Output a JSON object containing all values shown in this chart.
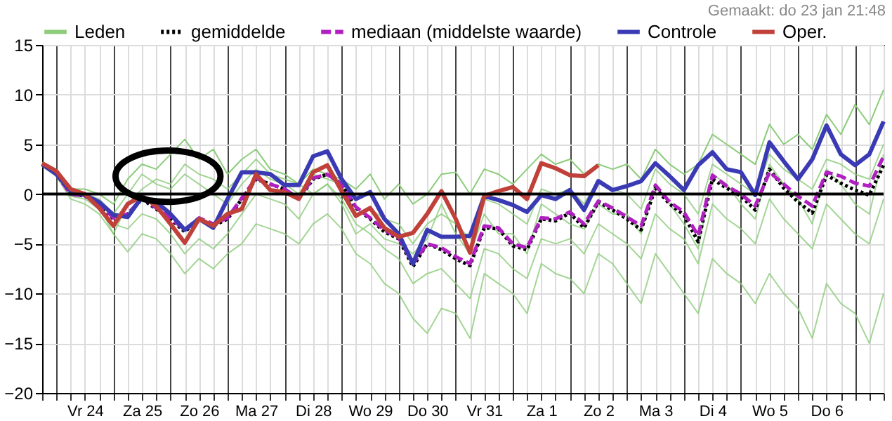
{
  "chart_data": {
    "type": "line",
    "annotations": [
      "Gemaakt: do 23 jan 21:48"
    ],
    "categories": [
      null,
      null,
      null,
      "Vr 24",
      null,
      null,
      null,
      "Za 25",
      null,
      null,
      null,
      "Zo 26",
      null,
      null,
      null,
      "Ma 27",
      null,
      null,
      null,
      "Di 28",
      null,
      null,
      null,
      "Wo 29",
      null,
      null,
      null,
      "Do 30",
      null,
      null,
      null,
      "Vr 31",
      null,
      null,
      null,
      "Za 1",
      null,
      null,
      null,
      "Zo 2",
      null,
      null,
      null,
      "Ma 3",
      null,
      null,
      null,
      "Di 4",
      null,
      null,
      null,
      "Wo 5",
      null,
      null,
      null,
      "Do 6",
      null,
      null,
      null,
      null
    ],
    "ylim": [
      -20,
      15
    ],
    "yticks": [
      -20,
      -15,
      -10,
      -5,
      0,
      5,
      10,
      15
    ],
    "grid": true,
    "legend": "top",
    "ref_lines": [
      {
        "axis": "y",
        "value": 0,
        "color": "#000000"
      }
    ],
    "series": [
      {
        "name": "Leden",
        "color": "#8ccc7a",
        "values": [
          3.0,
          2.2,
          0.5,
          0.5,
          0.0,
          -1.0,
          1.5,
          3.0,
          2.5,
          4.0,
          5.5,
          3.5,
          4.5,
          2.0,
          3.5,
          4.5,
          2.5,
          2.0,
          1.0,
          2.5,
          2.0,
          1.5,
          0.5,
          2.0,
          -0.5,
          1.0,
          -1.0,
          0.0,
          2.0,
          2.2,
          0.0,
          2.5,
          2.0,
          1.0,
          2.5,
          4.0,
          3.0,
          3.5,
          2.0,
          3.0,
          2.5,
          3.0,
          1.5,
          4.5,
          3.0,
          2.0,
          3.0,
          6.0,
          5.0,
          4.0,
          3.0,
          7.0,
          5.0,
          6.0,
          4.5,
          8.0,
          6.0,
          9.0,
          7.0,
          10.5
        ]
      },
      {
        "color": "#8ccc7a",
        "values": [
          2.8,
          1.8,
          -0.5,
          -1.0,
          -2.0,
          -4.0,
          -5.8,
          -4.0,
          -4.5,
          -6.0,
          -8.0,
          -6.5,
          -7.5,
          -6.0,
          -5.0,
          -3.0,
          -3.5,
          -4.0,
          -5.0,
          -3.0,
          -2.0,
          -3.5,
          -6.0,
          -7.0,
          -9.0,
          -10.0,
          -12.5,
          -14.0,
          -11.5,
          -12.0,
          -14.5,
          -8.0,
          -9.0,
          -10.0,
          -12.0,
          -7.0,
          -8.0,
          -8.5,
          -10.0,
          -6.0,
          -7.0,
          -9.0,
          -11.0,
          -6.0,
          -8.0,
          -10.0,
          -12.0,
          -6.5,
          -8.0,
          -9.0,
          -11.0,
          -8.0,
          -10.0,
          -11.5,
          -14.5,
          -9.0,
          -11.0,
          -12.0,
          -15.0,
          -10.0
        ]
      },
      {
        "color": "#8ccc7a",
        "values": [
          3.0,
          2.0,
          0.3,
          0.0,
          -0.5,
          -2.0,
          0.0,
          2.0,
          1.0,
          0.5,
          2.0,
          1.0,
          0.0,
          -1.0,
          1.0,
          2.5,
          1.5,
          1.0,
          0.0,
          2.0,
          1.5,
          1.0,
          -2.0,
          -1.5,
          -2.5,
          -3.0,
          -5.0,
          -3.0,
          -2.0,
          -3.0,
          -4.5,
          -0.5,
          -1.0,
          -2.0,
          -3.0,
          0.5,
          0.0,
          0.5,
          -1.0,
          1.5,
          0.5,
          0.0,
          -1.5,
          2.5,
          1.0,
          0.0,
          -2.0,
          3.0,
          2.0,
          1.0,
          0.0,
          4.0,
          2.5,
          1.5,
          0.5,
          3.5,
          3.0,
          2.0,
          1.5,
          5.0
        ]
      },
      {
        "color": "#8ccc7a",
        "values": [
          3.0,
          1.9,
          -0.2,
          -0.5,
          -1.5,
          -3.0,
          -3.5,
          -2.0,
          -2.5,
          -4.0,
          -6.0,
          -4.5,
          -5.5,
          -4.0,
          -2.0,
          0.0,
          -0.5,
          -1.0,
          -2.5,
          0.0,
          1.0,
          -0.5,
          -3.0,
          -4.0,
          -5.5,
          -6.5,
          -9.0,
          -8.0,
          -7.5,
          -9.0,
          -10.5,
          -5.5,
          -6.0,
          -7.5,
          -8.5,
          -4.5,
          -5.0,
          -4.5,
          -6.0,
          -3.0,
          -4.0,
          -5.0,
          -6.5,
          -2.0,
          -3.5,
          -4.5,
          -7.0,
          -1.0,
          -2.5,
          -3.5,
          -5.0,
          -0.5,
          -2.5,
          -4.0,
          -5.5,
          -1.0,
          -2.5,
          -4.0,
          -5.0,
          -0.5
        ]
      },
      {
        "color": "#8ccc7a",
        "values": [
          3.2,
          2.1,
          0.2,
          -0.3,
          -1.2,
          -4.0,
          -1.0,
          0.5,
          1.5,
          1.0,
          3.0,
          2.0,
          1.5,
          0.5,
          2.0,
          3.5,
          2.0,
          1.5,
          1.0,
          0.0,
          1.0,
          -1.0,
          -4.0,
          -3.0,
          -4.5,
          -5.0,
          -6.0,
          -4.5,
          -1.0,
          -4.0,
          -6.0,
          -2.0,
          -4.0,
          -4.0,
          -6.0,
          -1.0,
          -2.0,
          -3.0,
          -3.5,
          -1.0,
          -2.0,
          -2.0,
          -4.0,
          1.0,
          -1.0,
          -3.0,
          -5.5,
          2.0,
          1.0,
          -1.0,
          -2.5,
          3.0,
          1.0,
          -0.5,
          -3.0,
          2.5,
          1.0,
          -1.0,
          -2.0,
          4.0
        ]
      },
      {
        "name": "gemiddelde",
        "color": "#000000",
        "line_style": "dotted",
        "values": [
          3.0,
          2.0,
          0.0,
          -0.2,
          -1.0,
          -2.5,
          -2.0,
          -0.5,
          -1.5,
          -2.5,
          -3.8,
          -2.5,
          -3.2,
          -2.5,
          -0.5,
          1.5,
          1.0,
          0.5,
          -0.5,
          1.5,
          2.0,
          1.0,
          -1.4,
          -2.5,
          -3.8,
          -4.5,
          -7.3,
          -5.0,
          -5.6,
          -6.5,
          -7.2,
          -3.4,
          -3.5,
          -5.2,
          -5.6,
          -2.5,
          -2.7,
          -1.9,
          -3.4,
          -0.8,
          -1.6,
          -2.5,
          -3.6,
          0.6,
          -1.0,
          -2.1,
          -4.8,
          1.5,
          0.6,
          -0.2,
          -1.6,
          2.5,
          0.6,
          -0.8,
          -1.9,
          1.9,
          1.1,
          0.4,
          -0.1,
          2.9
        ]
      },
      {
        "name": "mediaan (middelste waarde)",
        "color": "#b020c0",
        "line_style": "dashed",
        "values": [
          3.0,
          2.0,
          0.0,
          -0.2,
          -1.0,
          -2.4,
          -2.0,
          -0.4,
          -1.4,
          -2.4,
          -3.6,
          -2.4,
          -3.0,
          -2.4,
          -0.4,
          1.6,
          1.0,
          0.5,
          -0.4,
          1.6,
          2.0,
          1.0,
          -1.3,
          -2.4,
          -3.6,
          -4.4,
          -7.0,
          -5.0,
          -5.4,
          -6.3,
          -7.0,
          -3.2,
          -3.4,
          -5.0,
          -5.4,
          -2.4,
          -2.5,
          -1.8,
          -3.0,
          -0.7,
          -1.4,
          -2.3,
          -3.2,
          0.9,
          -0.8,
          -1.8,
          -4.2,
          1.9,
          0.8,
          0.0,
          -1.2,
          2.2,
          1.0,
          -0.2,
          -1.2,
          2.2,
          1.8,
          1.1,
          0.8,
          3.8
        ]
      },
      {
        "name": "Controle",
        "color": "#3a3ab4",
        "values": [
          3.0,
          2.0,
          0.3,
          -0.1,
          -0.8,
          -2.1,
          -2.3,
          -0.3,
          -0.8,
          -2.0,
          -3.6,
          -2.5,
          -3.4,
          -0.5,
          2.2,
          2.2,
          2.0,
          0.9,
          0.9,
          3.8,
          4.3,
          1.5,
          -0.5,
          0.2,
          -2.5,
          -4.0,
          -7.0,
          -3.6,
          -4.3,
          -4.3,
          -4.2,
          -0.2,
          -0.6,
          -1.1,
          -1.8,
          -0.1,
          -0.5,
          0.4,
          -1.6,
          1.3,
          0.4,
          0.8,
          1.3,
          3.1,
          1.8,
          0.4,
          2.9,
          4.2,
          2.5,
          2.2,
          -0.1,
          5.2,
          3.3,
          1.5,
          3.5,
          6.9,
          4.0,
          2.9,
          4.0,
          7.3
        ]
      },
      {
        "name": "Oper.",
        "color": "#c0403a",
        "values": [
          3.1,
          2.3,
          0.5,
          0.0,
          -1.4,
          -3.2,
          -1.0,
          -0.2,
          -1.2,
          -3.0,
          -4.9,
          -2.5,
          -3.2,
          -2.0,
          -1.5,
          2.0,
          0.4,
          0.2,
          -0.5,
          2.2,
          2.9,
          0.3,
          -2.2,
          -1.4,
          -3.4,
          -4.3,
          -3.9,
          -2.0,
          0.3,
          -2.5,
          -5.9,
          -0.2,
          0.3,
          0.7,
          -0.5,
          3.1,
          2.6,
          1.9,
          1.8,
          2.9,
          null,
          null,
          null,
          null,
          null,
          null,
          null,
          null,
          null,
          null,
          null,
          null,
          null,
          null,
          null,
          null,
          null,
          null,
          null,
          null
        ]
      }
    ]
  }
}
